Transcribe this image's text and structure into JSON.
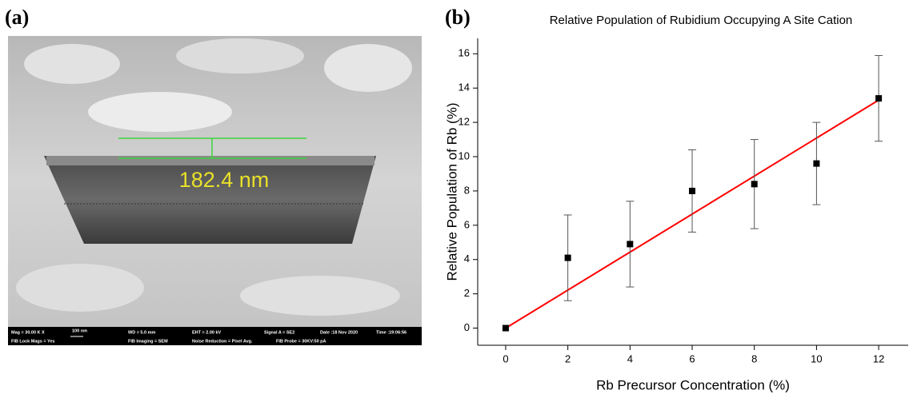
{
  "panel_a": {
    "label": "(a)",
    "measurement": "182.4 nm",
    "info_bar": [
      "Mag = 30.00 K X",
      "100 nm",
      "WD = 5.0 mm",
      "EHT = 2.00 kV",
      "Signal A = SE2",
      "Date :18 Nov 2020",
      "Time :19:06:56",
      "FIB Lock Mags = Yes",
      "FIB Imaging = SEM",
      "Noise Reduction = Pixel Avg.",
      "FIB Probe = 30KV:50 pA"
    ]
  },
  "chart_data": {
    "type": "scatter",
    "panel_label": "(b)",
    "title": "Relative Population of Rubidium Occupying A Site Cation",
    "x_label": "Rb Precursor Concentration (%)",
    "y_label": "Relative Population of Rb (%)",
    "x": [
      0,
      2,
      4,
      6,
      8,
      10,
      12
    ],
    "values": [
      0,
      4.1,
      4.9,
      8.0,
      8.4,
      9.6,
      13.4
    ],
    "errors": [
      0,
      2.5,
      2.5,
      2.4,
      2.6,
      2.4,
      2.5
    ],
    "color": "#000000",
    "fit": {
      "x": [
        0,
        12
      ],
      "y": [
        0,
        13.3
      ],
      "color": "#ff0000"
    },
    "xlim": [
      -0.9,
      12.95
    ],
    "ylim": [
      -1,
      16.9
    ],
    "xticks": [
      0,
      2,
      4,
      6,
      8,
      10,
      12
    ],
    "yticks": [
      0,
      2,
      4,
      6,
      8,
      10,
      12,
      14,
      16
    ],
    "grid": false
  }
}
